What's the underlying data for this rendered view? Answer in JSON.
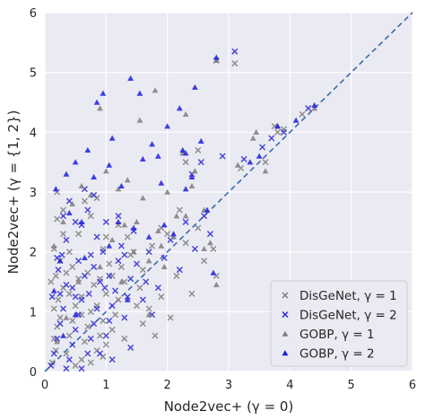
{
  "chart_data": {
    "type": "scatter",
    "xlabel": "Node2vec+ (γ = 0)",
    "ylabel": "Node2vec+ (γ = {1, 2})",
    "xlim": [
      0,
      6
    ],
    "ylim": [
      0,
      6
    ],
    "xticks": [
      "0",
      "1",
      "2",
      "3",
      "4",
      "5",
      "6"
    ],
    "yticks": [
      "0",
      "1",
      "2",
      "3",
      "4",
      "5",
      "6"
    ],
    "grid": true,
    "legend_position": "bottom-right",
    "reference_line": {
      "style": "dashed",
      "color": "#3a6aa8",
      "from": [
        0,
        0
      ],
      "to": [
        6,
        6
      ]
    },
    "series": [
      {
        "name": "DisGeNet, γ = 1",
        "marker": "x",
        "color": "#7f7f7f",
        "points": [
          [
            0.12,
            0.15
          ],
          [
            0.18,
            0.35
          ],
          [
            0.15,
            0.55
          ],
          [
            0.2,
            0.75
          ],
          [
            0.25,
            0.9
          ],
          [
            0.15,
            1.05
          ],
          [
            0.22,
            1.2
          ],
          [
            0.3,
            1.4
          ],
          [
            0.18,
            1.6
          ],
          [
            0.25,
            1.85
          ],
          [
            0.15,
            2.05
          ],
          [
            0.3,
            2.3
          ],
          [
            0.2,
            2.55
          ],
          [
            0.35,
            0.3
          ],
          [
            0.4,
            0.6
          ],
          [
            0.45,
            0.85
          ],
          [
            0.5,
            1.1
          ],
          [
            0.4,
            1.3
          ],
          [
            0.55,
            1.55
          ],
          [
            0.45,
            1.75
          ],
          [
            0.6,
            0.2
          ],
          [
            0.65,
            0.5
          ],
          [
            0.7,
            0.75
          ],
          [
            0.75,
            1.0
          ],
          [
            0.6,
            1.25
          ],
          [
            0.8,
            1.45
          ],
          [
            0.7,
            1.65
          ],
          [
            0.85,
            0.35
          ],
          [
            0.9,
            0.6
          ],
          [
            0.95,
            0.85
          ],
          [
            0.85,
            1.1
          ],
          [
            1.0,
            1.3
          ],
          [
            0.9,
            1.55
          ],
          [
            1.05,
            1.8
          ],
          [
            0.95,
            2.05
          ],
          [
            1.1,
            0.7
          ],
          [
            1.15,
            0.95
          ],
          [
            1.2,
            1.2
          ],
          [
            1.3,
            1.5
          ],
          [
            1.25,
            1.75
          ],
          [
            1.4,
            1.95
          ],
          [
            1.35,
            2.25
          ],
          [
            1.5,
            1.1
          ],
          [
            1.55,
            1.4
          ],
          [
            1.6,
            1.7
          ],
          [
            1.7,
            1.05
          ],
          [
            1.75,
            2.1
          ],
          [
            1.8,
            0.6
          ],
          [
            1.9,
            1.25
          ],
          [
            2.0,
            2.3
          ],
          [
            2.05,
            0.9
          ],
          [
            2.15,
            1.6
          ],
          [
            2.3,
            2.15
          ],
          [
            2.4,
            1.3
          ],
          [
            2.5,
            2.4
          ],
          [
            2.6,
            1.85
          ],
          [
            2.75,
            2.05
          ],
          [
            2.8,
            1.6
          ],
          [
            0.55,
            2.3
          ],
          [
            0.65,
            2.85
          ],
          [
            0.75,
            2.6
          ],
          [
            0.85,
            2.9
          ],
          [
            0.3,
            2.7
          ],
          [
            0.2,
            3.0
          ],
          [
            1.0,
            2.25
          ],
          [
            1.2,
            2.45
          ],
          [
            1.45,
            2.0
          ],
          [
            0.5,
            0.1
          ],
          [
            0.75,
            0.15
          ],
          [
            1.0,
            0.45
          ],
          [
            0.1,
            1.5
          ],
          [
            0.35,
            1.65
          ],
          [
            2.3,
            3.5
          ],
          [
            2.5,
            3.7
          ],
          [
            2.8,
            5.2
          ],
          [
            3.1,
            5.15
          ],
          [
            3.2,
            3.4
          ],
          [
            3.6,
            3.5
          ],
          [
            3.75,
            4.1
          ],
          [
            3.8,
            4.0
          ],
          [
            3.9,
            4.05
          ],
          [
            4.2,
            4.3
          ],
          [
            1.1,
            1.6
          ],
          [
            1.6,
            0.8
          ],
          [
            1.3,
            0.55
          ],
          [
            0.6,
            0.95
          ],
          [
            0.4,
            2.0
          ],
          [
            1.9,
            2.4
          ],
          [
            2.2,
            2.7
          ],
          [
            0.95,
            0.25
          ]
        ]
      },
      {
        "name": "DisGeNet, γ = 2",
        "marker": "x",
        "color": "#2b2bd6",
        "points": [
          [
            0.1,
            0.1
          ],
          [
            0.15,
            0.3
          ],
          [
            0.2,
            0.55
          ],
          [
            0.25,
            0.8
          ],
          [
            0.3,
            1.05
          ],
          [
            0.12,
            1.25
          ],
          [
            0.35,
            1.45
          ],
          [
            0.22,
            1.7
          ],
          [
            0.28,
            1.95
          ],
          [
            0.35,
            2.2
          ],
          [
            0.4,
            0.2
          ],
          [
            0.45,
            0.45
          ],
          [
            0.5,
            0.7
          ],
          [
            0.55,
            0.95
          ],
          [
            0.6,
            1.2
          ],
          [
            0.45,
            1.4
          ],
          [
            0.65,
            1.6
          ],
          [
            0.55,
            1.85
          ],
          [
            0.7,
            0.3
          ],
          [
            0.75,
            0.55
          ],
          [
            0.8,
            0.8
          ],
          [
            0.85,
            1.05
          ],
          [
            0.72,
            1.3
          ],
          [
            0.9,
            1.5
          ],
          [
            0.8,
            1.75
          ],
          [
            0.95,
            2.0
          ],
          [
            0.85,
            2.25
          ],
          [
            1.0,
            0.6
          ],
          [
            1.05,
            0.85
          ],
          [
            1.1,
            1.1
          ],
          [
            1.15,
            1.35
          ],
          [
            1.05,
            1.6
          ],
          [
            1.2,
            1.85
          ],
          [
            1.25,
            2.1
          ],
          [
            1.3,
            0.9
          ],
          [
            1.35,
            1.25
          ],
          [
            1.4,
            1.55
          ],
          [
            1.5,
            1.8
          ],
          [
            1.45,
            2.35
          ],
          [
            1.6,
            1.2
          ],
          [
            1.65,
            1.5
          ],
          [
            1.7,
            2.0
          ],
          [
            1.85,
            1.4
          ],
          [
            1.95,
            1.9
          ],
          [
            2.05,
            2.2
          ],
          [
            2.2,
            1.7
          ],
          [
            2.3,
            2.5
          ],
          [
            2.45,
            2.05
          ],
          [
            2.6,
            2.6
          ],
          [
            2.7,
            2.3
          ],
          [
            0.6,
            2.45
          ],
          [
            0.7,
            2.7
          ],
          [
            0.8,
            2.95
          ],
          [
            0.65,
            3.05
          ],
          [
            0.5,
            2.5
          ],
          [
            0.3,
            2.6
          ],
          [
            0.4,
            2.85
          ],
          [
            1.0,
            2.5
          ],
          [
            1.2,
            2.6
          ],
          [
            0.9,
            0.3
          ],
          [
            0.35,
            0.05
          ],
          [
            0.6,
            0.05
          ],
          [
            1.1,
            0.2
          ],
          [
            1.4,
            0.4
          ],
          [
            0.2,
            1.9
          ],
          [
            0.5,
            1.25
          ],
          [
            2.4,
            3.3
          ],
          [
            2.55,
            3.5
          ],
          [
            2.9,
            3.6
          ],
          [
            3.1,
            5.35
          ],
          [
            3.25,
            3.55
          ],
          [
            3.55,
            3.75
          ],
          [
            3.7,
            3.9
          ],
          [
            3.9,
            4.0
          ],
          [
            4.3,
            4.4
          ],
          [
            1.75,
            0.95
          ],
          [
            1.3,
            1.95
          ],
          [
            0.75,
            1.95
          ],
          [
            0.98,
            1.4
          ],
          [
            0.25,
            1.3
          ]
        ]
      },
      {
        "name": "GOBP, γ = 1",
        "marker": "triangle",
        "color": "#7f7f7f",
        "points": [
          [
            0.15,
            2.1
          ],
          [
            0.3,
            2.5
          ],
          [
            0.45,
            2.8
          ],
          [
            0.6,
            3.1
          ],
          [
            0.9,
            4.4
          ],
          [
            1.1,
            2.2
          ],
          [
            1.3,
            2.45
          ],
          [
            1.35,
            3.2
          ],
          [
            1.45,
            2.0
          ],
          [
            1.55,
            4.2
          ],
          [
            1.6,
            2.9
          ],
          [
            1.7,
            1.85
          ],
          [
            1.8,
            4.7
          ],
          [
            1.85,
            2.35
          ],
          [
            1.95,
            1.75
          ],
          [
            2.1,
            2.25
          ],
          [
            2.25,
            3.65
          ],
          [
            2.3,
            2.6
          ],
          [
            2.45,
            3.35
          ],
          [
            2.6,
            2.05
          ],
          [
            2.8,
            1.45
          ],
          [
            2.8,
            5.2
          ],
          [
            3.15,
            3.45
          ],
          [
            3.4,
            3.9
          ],
          [
            3.6,
            3.35
          ],
          [
            3.8,
            4.1
          ],
          [
            4.4,
            4.4
          ],
          [
            1.25,
            1.5
          ],
          [
            1.7,
            0.95
          ],
          [
            1.0,
            3.35
          ],
          [
            0.75,
            2.95
          ],
          [
            1.2,
            3.05
          ],
          [
            2.0,
            3.0
          ],
          [
            2.6,
            2.7
          ],
          [
            2.7,
            2.15
          ],
          [
            0.55,
            1.5
          ],
          [
            0.35,
            0.9
          ],
          [
            0.9,
            1.75
          ],
          [
            2.3,
            4.3
          ],
          [
            1.9,
            2.1
          ],
          [
            3.45,
            4.0
          ],
          [
            2.15,
            2.6
          ],
          [
            1.5,
            2.5
          ],
          [
            2.4,
            3.1
          ],
          [
            0.2,
            0.5
          ]
        ]
      },
      {
        "name": "GOBP, γ = 2",
        "marker": "triangle",
        "color": "#1f1fe0",
        "points": [
          [
            0.18,
            3.05
          ],
          [
            0.35,
            3.3
          ],
          [
            0.5,
            3.5
          ],
          [
            0.7,
            3.7
          ],
          [
            0.85,
            4.5
          ],
          [
            0.95,
            4.65
          ],
          [
            1.1,
            3.9
          ],
          [
            1.25,
            3.1
          ],
          [
            1.4,
            4.9
          ],
          [
            1.55,
            4.65
          ],
          [
            1.6,
            3.55
          ],
          [
            1.75,
            3.8
          ],
          [
            1.9,
            3.15
          ],
          [
            2.0,
            4.1
          ],
          [
            2.2,
            4.4
          ],
          [
            2.3,
            3.65
          ],
          [
            2.45,
            4.75
          ],
          [
            2.55,
            3.85
          ],
          [
            2.4,
            3.25
          ],
          [
            2.65,
            2.7
          ],
          [
            2.75,
            1.65
          ],
          [
            2.8,
            5.25
          ],
          [
            3.35,
            3.5
          ],
          [
            3.5,
            3.6
          ],
          [
            3.8,
            4.1
          ],
          [
            4.1,
            4.2
          ],
          [
            4.4,
            4.45
          ],
          [
            0.15,
            1.35
          ],
          [
            0.25,
            1.85
          ],
          [
            0.4,
            2.65
          ],
          [
            0.6,
            2.5
          ],
          [
            0.8,
            3.25
          ],
          [
            1.05,
            2.1
          ],
          [
            1.2,
            2.5
          ],
          [
            1.35,
            1.2
          ],
          [
            1.7,
            2.25
          ],
          [
            2.1,
            2.3
          ],
          [
            1.95,
            2.45
          ],
          [
            2.3,
            3.05
          ],
          [
            0.3,
            0.6
          ],
          [
            0.5,
            0.95
          ],
          [
            1.45,
            2.4
          ],
          [
            2.25,
            3.7
          ],
          [
            1.05,
            3.45
          ],
          [
            0.65,
            1.9
          ],
          [
            1.85,
            3.6
          ]
        ]
      }
    ]
  }
}
